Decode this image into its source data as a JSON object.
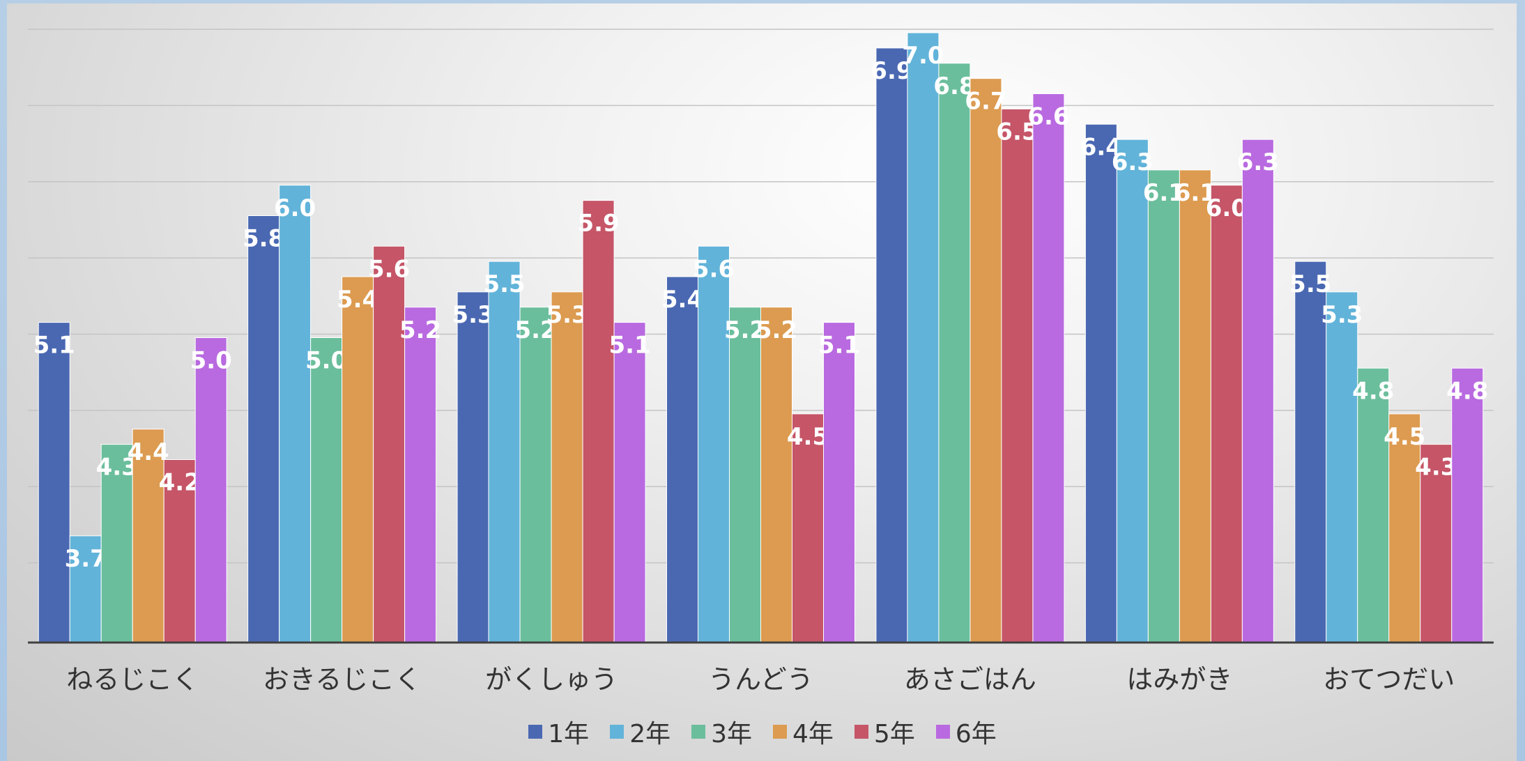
{
  "chart_data": {
    "type": "bar",
    "title": "",
    "xlabel": "",
    "ylabel": "",
    "ylim": [
      3.0,
      7.0
    ],
    "grid": true,
    "legend_position": "bottom",
    "categories": [
      "ねるじこく",
      "おきるじこく",
      "がくしゅう",
      "うんどう",
      "あさごはん",
      "はみがき",
      "おてつだい"
    ],
    "series": [
      {
        "name": "1年",
        "color": "#4a68b2",
        "values": [
          5.1,
          5.8,
          5.3,
          5.4,
          6.9,
          6.4,
          5.5
        ]
      },
      {
        "name": "2年",
        "color": "#62b3d9",
        "values": [
          3.7,
          6.0,
          5.5,
          5.6,
          7.0,
          6.3,
          5.3
        ]
      },
      {
        "name": "3年",
        "color": "#6bbe9c",
        "values": [
          4.3,
          5.0,
          5.2,
          5.2,
          6.8,
          6.1,
          4.8
        ]
      },
      {
        "name": "4年",
        "color": "#dc9b50",
        "values": [
          4.4,
          5.4,
          5.3,
          5.2,
          6.7,
          6.1,
          4.5
        ]
      },
      {
        "name": "5年",
        "color": "#c55567",
        "values": [
          4.2,
          5.6,
          5.9,
          4.5,
          6.5,
          6.0,
          4.3
        ]
      },
      {
        "name": "6年",
        "color": "#b96ae0",
        "values": [
          5.0,
          5.2,
          5.1,
          5.1,
          6.6,
          6.3,
          4.8
        ]
      }
    ]
  }
}
